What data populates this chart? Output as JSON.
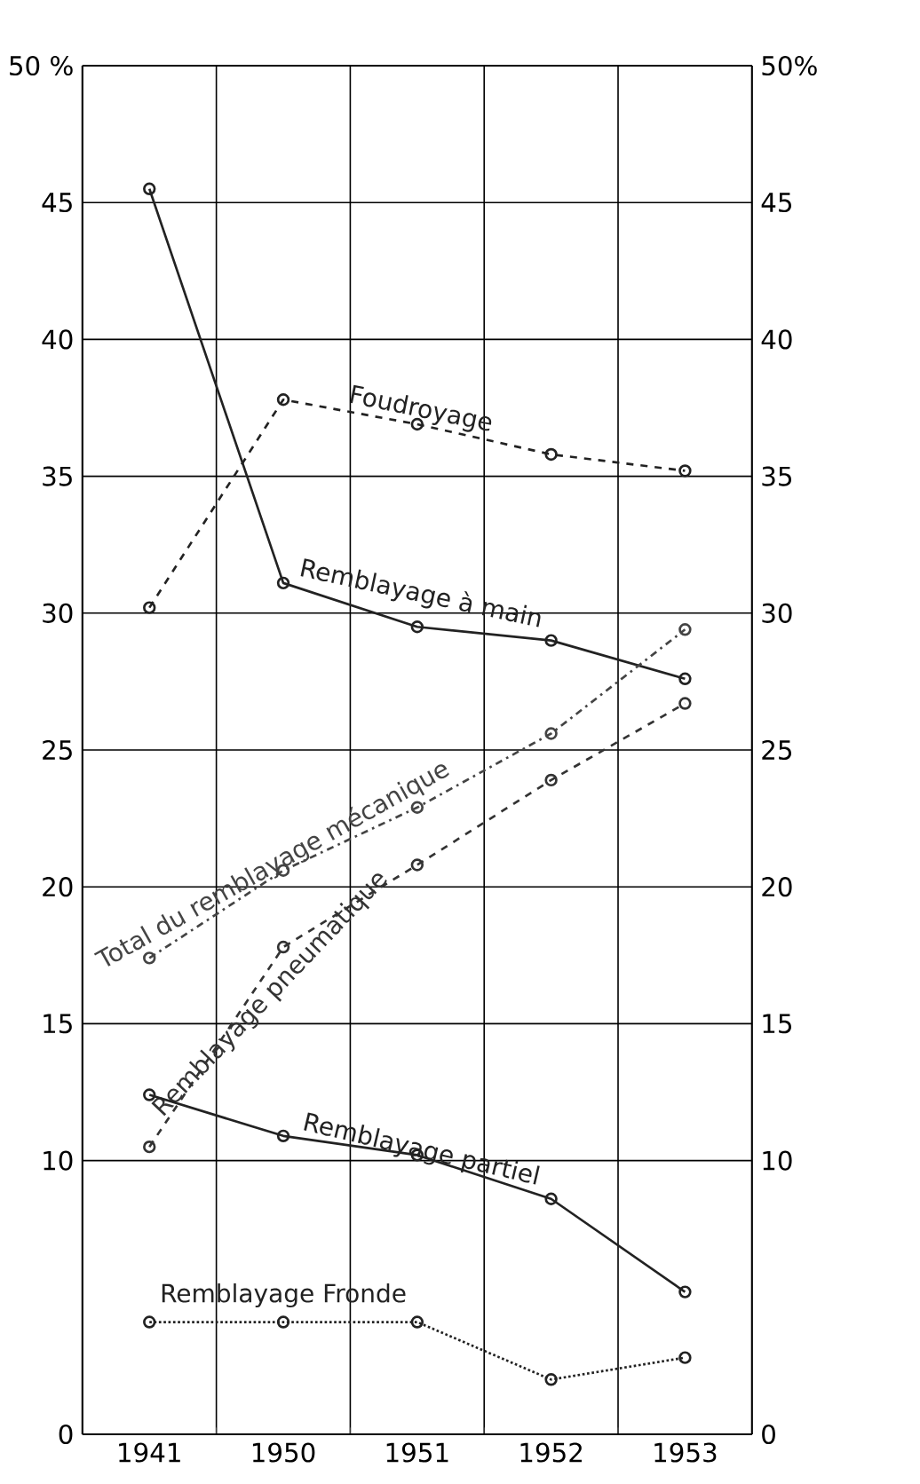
{
  "chart_data": {
    "type": "line",
    "categories": [
      "1941",
      "1950",
      "1951",
      "1952",
      "1953"
    ],
    "series": [
      {
        "name": "Foudroyage",
        "color": "#222222",
        "line_style": "dashed",
        "values": [
          30.2,
          37.8,
          36.9,
          35.8,
          35.2
        ]
      },
      {
        "name": "Remblayage à main",
        "color": "#222222",
        "line_style": "solid",
        "values": [
          45.5,
          31.1,
          29.5,
          29.0,
          27.6
        ]
      },
      {
        "name": "Total du remblayage mécanique",
        "color": "#444444",
        "line_style": "dashdotted",
        "values": [
          17.4,
          20.6,
          22.9,
          25.6,
          29.4
        ]
      },
      {
        "name": "Remblayage pneumatique",
        "color": "#333333",
        "line_style": "dashed",
        "values": [
          10.5,
          17.8,
          20.8,
          23.9,
          26.7
        ]
      },
      {
        "name": "Remblayage partiel",
        "color": "#222222",
        "line_style": "solid",
        "values": [
          12.4,
          10.9,
          10.2,
          8.6,
          5.2
        ]
      },
      {
        "name": "Remblayage Fronde",
        "color": "#222222",
        "line_style": "dotted",
        "values": [
          4.1,
          4.1,
          4.1,
          2.0,
          2.8
        ]
      }
    ],
    "ylim": [
      0,
      50
    ],
    "yticks": [
      0,
      10,
      15,
      20,
      25,
      30,
      35,
      40,
      45,
      {
        "value": 50,
        "label": "50 %"
      }
    ],
    "y2lim": [
      0,
      50
    ],
    "y2ticks": [
      0,
      10,
      15,
      20,
      25,
      30,
      35,
      40,
      45,
      {
        "value": 50,
        "label": "50%"
      }
    ],
    "grid": true,
    "marker": "circle"
  }
}
